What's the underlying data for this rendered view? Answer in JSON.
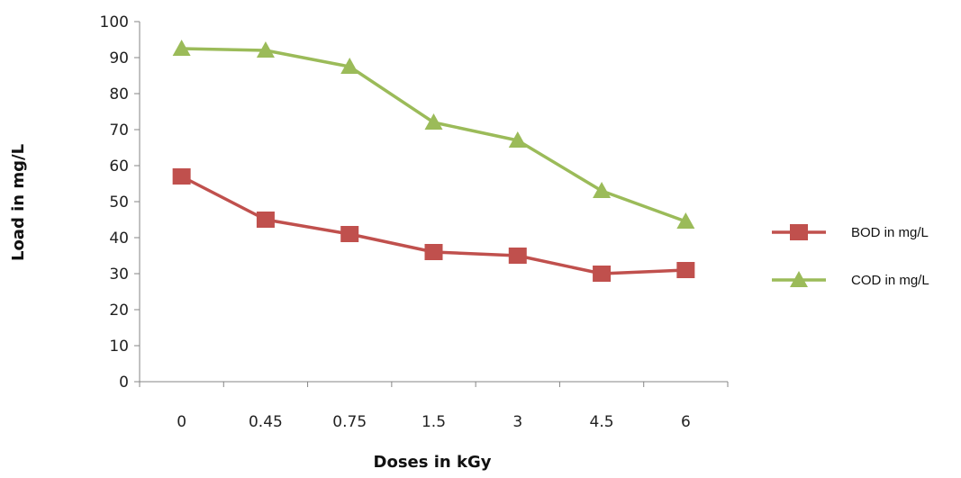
{
  "chart_data": {
    "type": "line",
    "title": "",
    "xlabel": "Doses in kGy",
    "ylabel": "Load in mg/L",
    "categories": [
      "0",
      "0.45",
      "0.75",
      "1.5",
      "3",
      "4.5",
      "6"
    ],
    "ylim": [
      0,
      100
    ],
    "yticks": [
      "0",
      "10",
      "20",
      "30",
      "40",
      "50",
      "60",
      "70",
      "80",
      "90",
      "100"
    ],
    "grid": false,
    "legend_position": "right",
    "series": [
      {
        "name": "BOD in mg/L",
        "color": "#C0504D",
        "marker": "square",
        "values": [
          57,
          45,
          41,
          36,
          35,
          30,
          31
        ]
      },
      {
        "name": "COD in mg/L",
        "color": "#9BBB59",
        "marker": "triangle",
        "values": [
          92.5,
          92,
          87.5,
          72,
          67,
          53,
          44.5
        ]
      }
    ]
  }
}
